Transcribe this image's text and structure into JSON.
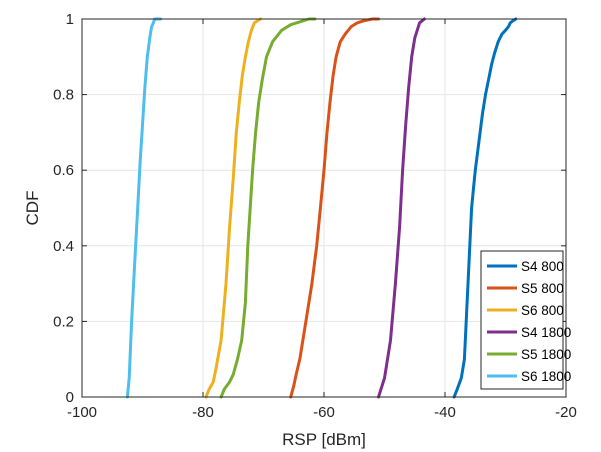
{
  "chart_data": {
    "type": "line",
    "xlabel": "RSP [dBm]",
    "ylabel": "CDF",
    "xlim": [
      -100,
      -20
    ],
    "ylim": [
      0,
      1
    ],
    "xticks": [
      -100,
      -80,
      -60,
      -40,
      -20
    ],
    "yticks": [
      0,
      0.2,
      0.4,
      0.6,
      0.8,
      1
    ],
    "xtick_labels": [
      "-100",
      "-80",
      "-60",
      "-40",
      "-20"
    ],
    "ytick_labels": [
      "0",
      "0.2",
      "0.4",
      "0.6",
      "0.8",
      "1"
    ],
    "grid": true,
    "legend_position": "bottom-right",
    "series": [
      {
        "name": "S4 800",
        "color": "#0072BD",
        "x": [
          -38.5,
          -38.0,
          -37.3,
          -36.8,
          -36.5,
          -36.2,
          -35.9,
          -35.6,
          -35.3,
          -35.0,
          -34.6,
          -34.2,
          -33.8,
          -33.3,
          -32.8,
          -32.3,
          -31.8,
          -31.2,
          -30.6,
          -30.0,
          -29.5,
          -29.2,
          -28.8,
          -28.3
        ],
        "y": [
          0.0,
          0.02,
          0.05,
          0.1,
          0.2,
          0.3,
          0.4,
          0.5,
          0.55,
          0.6,
          0.65,
          0.7,
          0.75,
          0.8,
          0.84,
          0.88,
          0.91,
          0.94,
          0.96,
          0.97,
          0.98,
          0.99,
          0.995,
          1.0
        ]
      },
      {
        "name": "S5 800",
        "color": "#D95319",
        "x": [
          -65.5,
          -65.0,
          -64.6,
          -64.0,
          -63.0,
          -62.0,
          -61.2,
          -60.6,
          -60.0,
          -59.5,
          -59.0,
          -58.5,
          -58.0,
          -57.3,
          -56.5,
          -55.5,
          -54.5,
          -53.5,
          -52.0,
          -51.0
        ],
        "y": [
          0.0,
          0.03,
          0.06,
          0.1,
          0.2,
          0.3,
          0.4,
          0.5,
          0.6,
          0.7,
          0.78,
          0.85,
          0.9,
          0.94,
          0.96,
          0.98,
          0.99,
          0.995,
          1.0,
          1.0
        ]
      },
      {
        "name": "S6 800",
        "color": "#EDB120",
        "x": [
          -79.5,
          -79.0,
          -78.3,
          -77.8,
          -77.0,
          -76.2,
          -75.6,
          -75.0,
          -74.5,
          -74.0,
          -73.5,
          -73.0,
          -72.5,
          -72.0,
          -71.5,
          -71.0,
          -70.5
        ],
        "y": [
          0.0,
          0.02,
          0.04,
          0.08,
          0.15,
          0.3,
          0.45,
          0.58,
          0.7,
          0.78,
          0.85,
          0.9,
          0.94,
          0.97,
          0.99,
          0.995,
          1.0
        ]
      },
      {
        "name": "S4 1800",
        "color": "#7E2F8E",
        "x": [
          -51.0,
          -50.6,
          -50.0,
          -49.0,
          -48.2,
          -47.5,
          -47.0,
          -46.5,
          -46.0,
          -45.5,
          -45.0,
          -44.6,
          -44.2,
          -43.8,
          -43.4
        ],
        "y": [
          0.0,
          0.02,
          0.05,
          0.15,
          0.3,
          0.45,
          0.6,
          0.72,
          0.82,
          0.9,
          0.95,
          0.97,
          0.99,
          0.995,
          1.0
        ]
      },
      {
        "name": "S5 1800",
        "color": "#77AC30",
        "x": [
          -77.0,
          -76.5,
          -75.6,
          -75.0,
          -74.3,
          -73.6,
          -73.0,
          -72.6,
          -72.2,
          -71.8,
          -71.3,
          -70.8,
          -70.2,
          -69.5,
          -68.5,
          -67.0,
          -65.5,
          -64.5,
          -63.5,
          -62.5,
          -61.5
        ],
        "y": [
          0.0,
          0.02,
          0.04,
          0.06,
          0.1,
          0.15,
          0.25,
          0.4,
          0.5,
          0.6,
          0.7,
          0.78,
          0.84,
          0.9,
          0.94,
          0.97,
          0.985,
          0.99,
          0.995,
          1.0,
          1.0
        ]
      },
      {
        "name": "S6 1800",
        "color": "#4DBEEE",
        "x": [
          -92.5,
          -92.2,
          -91.8,
          -91.3,
          -90.8,
          -90.4,
          -90.0,
          -89.6,
          -89.2,
          -88.8,
          -88.5,
          -88.2,
          -88.0,
          -87.5,
          -87.0
        ],
        "y": [
          0.0,
          0.05,
          0.2,
          0.35,
          0.5,
          0.62,
          0.72,
          0.82,
          0.9,
          0.95,
          0.98,
          0.99,
          1.0,
          1.0,
          1.0
        ]
      }
    ]
  }
}
